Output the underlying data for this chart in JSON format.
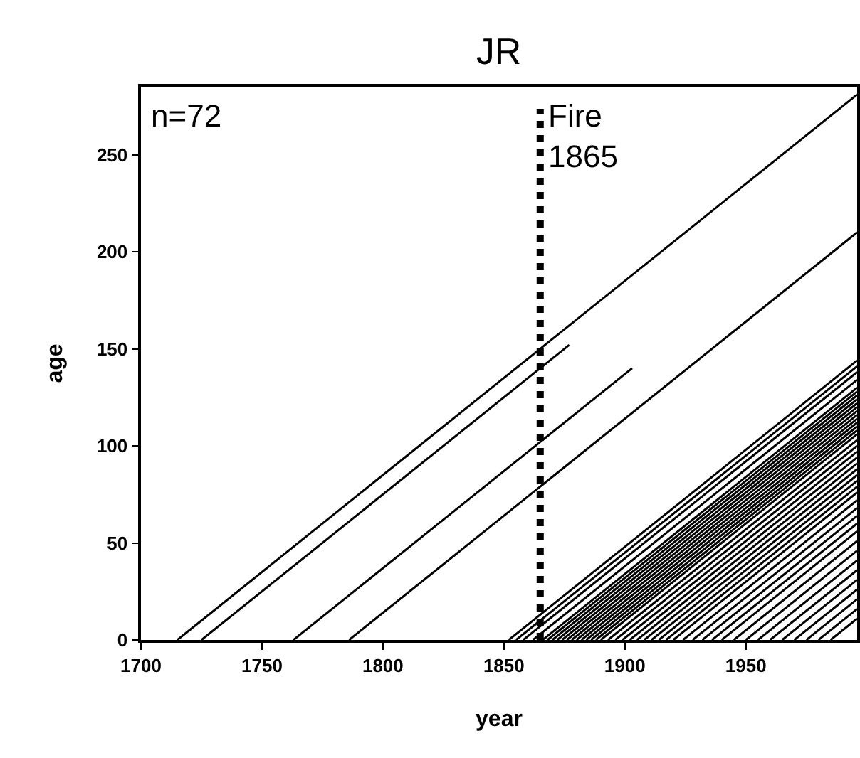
{
  "chart_data": {
    "type": "line",
    "title": "JR",
    "xlabel": "year",
    "ylabel": "age",
    "annotations": [
      "n=72"
    ],
    "xlim": [
      1700,
      1996
    ],
    "xticks": [
      1700,
      1750,
      1800,
      1850,
      1900,
      1950
    ],
    "ylim": [
      0,
      285
    ],
    "yticks": [
      0,
      50,
      100,
      150,
      200,
      250
    ],
    "grid": false,
    "marker": "none",
    "line_style": "solid",
    "ref_lines": [
      {
        "axis": "x",
        "value": 1865,
        "label": "Fire\n1865",
        "line_style": "dotted",
        "color": "#000000"
      }
    ],
    "series": [
      {
        "color": "#000000",
        "x": [
          1715,
          1996
        ],
        "values": [
          0,
          281
        ]
      },
      {
        "color": "#000000",
        "x": [
          1725,
          1877
        ],
        "values": [
          0,
          152
        ]
      },
      {
        "color": "#000000",
        "x": [
          1763,
          1903
        ],
        "values": [
          0,
          140
        ]
      },
      {
        "color": "#000000",
        "x": [
          1786,
          1996
        ],
        "values": [
          0,
          210
        ]
      },
      {
        "color": "#000000",
        "x": [
          1852,
          1996
        ],
        "values": [
          0,
          144
        ]
      },
      {
        "color": "#000000",
        "x": [
          1855,
          1996
        ],
        "values": [
          0,
          141
        ]
      },
      {
        "color": "#000000",
        "x": [
          1858,
          1996
        ],
        "values": [
          0,
          138
        ]
      },
      {
        "color": "#000000",
        "x": [
          1862,
          1996
        ],
        "values": [
          0,
          134
        ]
      },
      {
        "color": "#000000",
        "x": [
          1866,
          1996
        ],
        "values": [
          0,
          130
        ]
      },
      {
        "color": "#000000",
        "x": [
          1868,
          1996
        ],
        "values": [
          0,
          128
        ]
      },
      {
        "color": "#000000",
        "x": [
          1870,
          1996
        ],
        "values": [
          0,
          126
        ]
      },
      {
        "color": "#000000",
        "x": [
          1872,
          1996
        ],
        "values": [
          0,
          124
        ]
      },
      {
        "color": "#000000",
        "x": [
          1874,
          1996
        ],
        "values": [
          0,
          122
        ]
      },
      {
        "color": "#000000",
        "x": [
          1876,
          1996
        ],
        "values": [
          0,
          120
        ]
      },
      {
        "color": "#000000",
        "x": [
          1878,
          1996
        ],
        "values": [
          0,
          118
        ]
      },
      {
        "color": "#000000",
        "x": [
          1880,
          1996
        ],
        "values": [
          0,
          116
        ]
      },
      {
        "color": "#000000",
        "x": [
          1882,
          1996
        ],
        "values": [
          0,
          114
        ]
      },
      {
        "color": "#000000",
        "x": [
          1884,
          1996
        ],
        "values": [
          0,
          112
        ]
      },
      {
        "color": "#000000",
        "x": [
          1886,
          1996
        ],
        "values": [
          0,
          110
        ]
      },
      {
        "color": "#000000",
        "x": [
          1888,
          1996
        ],
        "values": [
          0,
          108
        ]
      },
      {
        "color": "#000000",
        "x": [
          1890,
          1996
        ],
        "values": [
          0,
          106
        ]
      },
      {
        "color": "#000000",
        "x": [
          1893,
          1996
        ],
        "values": [
          0,
          103
        ]
      },
      {
        "color": "#000000",
        "x": [
          1896,
          1996
        ],
        "values": [
          0,
          100
        ]
      },
      {
        "color": "#000000",
        "x": [
          1899,
          1996
        ],
        "values": [
          0,
          97
        ]
      },
      {
        "color": "#000000",
        "x": [
          1902,
          1996
        ],
        "values": [
          0,
          94
        ]
      },
      {
        "color": "#000000",
        "x": [
          1905,
          1996
        ],
        "values": [
          0,
          91
        ]
      },
      {
        "color": "#000000",
        "x": [
          1908,
          1996
        ],
        "values": [
          0,
          88
        ]
      },
      {
        "color": "#000000",
        "x": [
          1911,
          1996
        ],
        "values": [
          0,
          85
        ]
      },
      {
        "color": "#000000",
        "x": [
          1914,
          1996
        ],
        "values": [
          0,
          82
        ]
      },
      {
        "color": "#000000",
        "x": [
          1917,
          1996
        ],
        "values": [
          0,
          79
        ]
      },
      {
        "color": "#000000",
        "x": [
          1920,
          1996
        ],
        "values": [
          0,
          76
        ]
      },
      {
        "color": "#000000",
        "x": [
          1924,
          1996
        ],
        "values": [
          0,
          72
        ]
      },
      {
        "color": "#000000",
        "x": [
          1928,
          1996
        ],
        "values": [
          0,
          68
        ]
      },
      {
        "color": "#000000",
        "x": [
          1932,
          1996
        ],
        "values": [
          0,
          64
        ]
      },
      {
        "color": "#000000",
        "x": [
          1936,
          1996
        ],
        "values": [
          0,
          60
        ]
      },
      {
        "color": "#000000",
        "x": [
          1940,
          1996
        ],
        "values": [
          0,
          56
        ]
      },
      {
        "color": "#000000",
        "x": [
          1945,
          1996
        ],
        "values": [
          0,
          51
        ]
      },
      {
        "color": "#000000",
        "x": [
          1950,
          1996
        ],
        "values": [
          0,
          46
        ]
      },
      {
        "color": "#000000",
        "x": [
          1955,
          1996
        ],
        "values": [
          0,
          41
        ]
      },
      {
        "color": "#000000",
        "x": [
          1960,
          1996
        ],
        "values": [
          0,
          36
        ]
      },
      {
        "color": "#000000",
        "x": [
          1965,
          1996
        ],
        "values": [
          0,
          31
        ]
      },
      {
        "color": "#000000",
        "x": [
          1970,
          1996
        ],
        "values": [
          0,
          26
        ]
      },
      {
        "color": "#000000",
        "x": [
          1975,
          1996
        ],
        "values": [
          0,
          21
        ]
      },
      {
        "color": "#000000",
        "x": [
          1980,
          1996
        ],
        "values": [
          0,
          16
        ]
      },
      {
        "color": "#000000",
        "x": [
          1985,
          1996
        ],
        "values": [
          0,
          11
        ]
      }
    ]
  }
}
